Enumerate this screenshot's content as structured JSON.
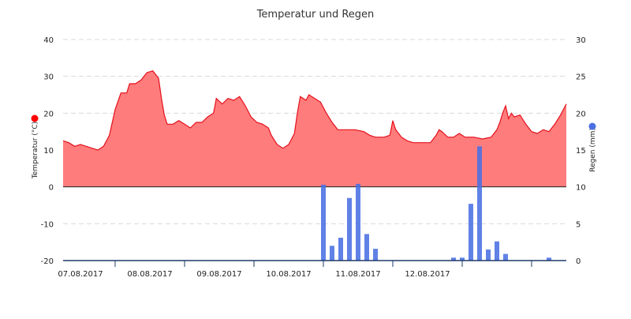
{
  "chart_data": {
    "type": "area+bar",
    "title": "Temperatur und Regen",
    "colors": {
      "temperature_fill": "#ff7c7c",
      "temperature_line": "#e4101c",
      "rain": "#4a6fe3",
      "axis": "#1f3a6a"
    },
    "x_axis": {
      "type": "datetime",
      "range": [
        "2017-08-06 06:00",
        "2017-08-13 12:00"
      ],
      "tick_dates": [
        "2017-08-07 00:00",
        "2017-08-08 00:00",
        "2017-08-09 00:00",
        "2017-08-10 00:00",
        "2017-08-11 00:00",
        "2017-08-12 00:00",
        "2017-08-13 00:00"
      ],
      "labels": [
        "07.08.2017",
        "08.08.2017",
        "09.08.2017",
        "10.08.2017",
        "11.08.2017",
        "12.08.2017",
        ""
      ],
      "label_offset_hours": 12
    },
    "y_left": {
      "label": "Temperatur (°C)",
      "range": [
        -20,
        40
      ],
      "ticks": [
        -20,
        -10,
        0,
        10,
        20,
        30,
        40
      ]
    },
    "y_right": {
      "label": "Regen (mm)",
      "range": [
        0,
        30
      ],
      "ticks": [
        0,
        5,
        10,
        15,
        20,
        25,
        30
      ]
    },
    "legend_markers": {
      "left": "red dot",
      "right": "blue dot"
    },
    "series": [
      {
        "name": "Temperatur",
        "type": "area",
        "axis": "left",
        "baseline": 0,
        "points": [
          [
            "2017-08-06 06:00",
            12.5
          ],
          [
            "2017-08-06 08:00",
            12.0
          ],
          [
            "2017-08-06 10:00",
            11.0
          ],
          [
            "2017-08-06 12:00",
            11.5
          ],
          [
            "2017-08-06 14:00",
            11.0
          ],
          [
            "2017-08-06 16:00",
            10.5
          ],
          [
            "2017-08-06 18:00",
            10.0
          ],
          [
            "2017-08-06 20:00",
            11.0
          ],
          [
            "2017-08-06 22:00",
            14.0
          ],
          [
            "2017-08-07 00:00",
            21.0
          ],
          [
            "2017-08-07 02:00",
            25.5
          ],
          [
            "2017-08-07 04:00",
            25.5
          ],
          [
            "2017-08-07 05:00",
            28.0
          ],
          [
            "2017-08-07 07:00",
            28.0
          ],
          [
            "2017-08-07 09:00",
            29.0
          ],
          [
            "2017-08-07 11:00",
            31.0
          ],
          [
            "2017-08-07 13:00",
            31.5
          ],
          [
            "2017-08-07 15:00",
            29.5
          ],
          [
            "2017-08-07 16:00",
            24.0
          ],
          [
            "2017-08-07 17:00",
            19.5
          ],
          [
            "2017-08-07 18:00",
            17.0
          ],
          [
            "2017-08-07 20:00",
            17.0
          ],
          [
            "2017-08-07 22:00",
            18.0
          ],
          [
            "2017-08-08 00:00",
            17.0
          ],
          [
            "2017-08-08 02:00",
            16.0
          ],
          [
            "2017-08-08 04:00",
            17.5
          ],
          [
            "2017-08-08 06:00",
            17.5
          ],
          [
            "2017-08-08 08:00",
            19.0
          ],
          [
            "2017-08-08 10:00",
            20.0
          ],
          [
            "2017-08-08 11:00",
            24.0
          ],
          [
            "2017-08-08 13:00",
            22.5
          ],
          [
            "2017-08-08 15:00",
            24.0
          ],
          [
            "2017-08-08 17:00",
            23.5
          ],
          [
            "2017-08-08 19:00",
            24.5
          ],
          [
            "2017-08-08 21:00",
            22.0
          ],
          [
            "2017-08-08 23:00",
            19.0
          ],
          [
            "2017-08-09 01:00",
            17.5
          ],
          [
            "2017-08-09 03:00",
            17.0
          ],
          [
            "2017-08-09 05:00",
            16.0
          ],
          [
            "2017-08-09 06:00",
            14.0
          ],
          [
            "2017-08-09 08:00",
            11.5
          ],
          [
            "2017-08-09 10:00",
            10.5
          ],
          [
            "2017-08-09 12:00",
            11.5
          ],
          [
            "2017-08-09 14:00",
            14.5
          ],
          [
            "2017-08-09 15:00",
            20.0
          ],
          [
            "2017-08-09 16:00",
            24.5
          ],
          [
            "2017-08-09 18:00",
            23.5
          ],
          [
            "2017-08-09 19:00",
            25.0
          ],
          [
            "2017-08-09 21:00",
            24.0
          ],
          [
            "2017-08-09 23:00",
            23.0
          ],
          [
            "2017-08-10 01:00",
            20.0
          ],
          [
            "2017-08-10 03:00",
            17.5
          ],
          [
            "2017-08-10 05:00",
            15.5
          ],
          [
            "2017-08-10 08:00",
            15.5
          ],
          [
            "2017-08-10 11:00",
            15.5
          ],
          [
            "2017-08-10 14:00",
            15.0
          ],
          [
            "2017-08-10 16:00",
            14.0
          ],
          [
            "2017-08-10 18:00",
            13.5
          ],
          [
            "2017-08-10 21:00",
            13.5
          ],
          [
            "2017-08-10 23:00",
            14.0
          ],
          [
            "2017-08-11 00:00",
            18.0
          ],
          [
            "2017-08-11 01:00",
            15.5
          ],
          [
            "2017-08-11 03:00",
            13.5
          ],
          [
            "2017-08-11 05:00",
            12.5
          ],
          [
            "2017-08-11 07:00",
            12.0
          ],
          [
            "2017-08-11 10:00",
            12.0
          ],
          [
            "2017-08-11 13:00",
            12.0
          ],
          [
            "2017-08-11 15:00",
            14.0
          ],
          [
            "2017-08-11 16:00",
            15.5
          ],
          [
            "2017-08-11 17:00",
            15.0
          ],
          [
            "2017-08-11 19:00",
            13.5
          ],
          [
            "2017-08-11 21:00",
            13.5
          ],
          [
            "2017-08-11 23:00",
            14.5
          ],
          [
            "2017-08-12 01:00",
            13.5
          ],
          [
            "2017-08-12 04:00",
            13.5
          ],
          [
            "2017-08-12 07:00",
            13.0
          ],
          [
            "2017-08-12 10:00",
            13.5
          ],
          [
            "2017-08-12 12:00",
            15.5
          ],
          [
            "2017-08-12 13:00",
            17.5
          ],
          [
            "2017-08-12 14:00",
            20.0
          ],
          [
            "2017-08-12 15:00",
            22.0
          ],
          [
            "2017-08-12 16:00",
            18.5
          ],
          [
            "2017-08-12 17:00",
            20.0
          ],
          [
            "2017-08-12 18:00",
            19.0
          ],
          [
            "2017-08-12 20:00",
            19.5
          ],
          [
            "2017-08-12 22:00",
            17.0
          ],
          [
            "2017-08-13 00:00",
            15.0
          ],
          [
            "2017-08-13 02:00",
            14.5
          ],
          [
            "2017-08-13 04:00",
            15.5
          ],
          [
            "2017-08-13 06:00",
            15.0
          ],
          [
            "2017-08-13 08:00",
            17.0
          ],
          [
            "2017-08-13 10:00",
            19.5
          ],
          [
            "2017-08-13 12:00",
            22.5
          ]
        ]
      },
      {
        "name": "Regen",
        "type": "bar",
        "axis": "right",
        "bars": [
          [
            "2017-08-10 00:00",
            10.3
          ],
          [
            "2017-08-10 03:00",
            2.0
          ],
          [
            "2017-08-10 06:00",
            3.1
          ],
          [
            "2017-08-10 09:00",
            8.5
          ],
          [
            "2017-08-10 12:00",
            10.4
          ],
          [
            "2017-08-10 15:00",
            3.6
          ],
          [
            "2017-08-10 18:00",
            1.6
          ],
          [
            "2017-08-11 21:00",
            0.4
          ],
          [
            "2017-08-12 00:00",
            0.4
          ],
          [
            "2017-08-12 03:00",
            7.7
          ],
          [
            "2017-08-12 06:00",
            15.5
          ],
          [
            "2017-08-12 09:00",
            1.5
          ],
          [
            "2017-08-12 12:00",
            2.6
          ],
          [
            "2017-08-12 15:00",
            0.9
          ],
          [
            "2017-08-13 06:00",
            0.4
          ]
        ]
      }
    ]
  }
}
